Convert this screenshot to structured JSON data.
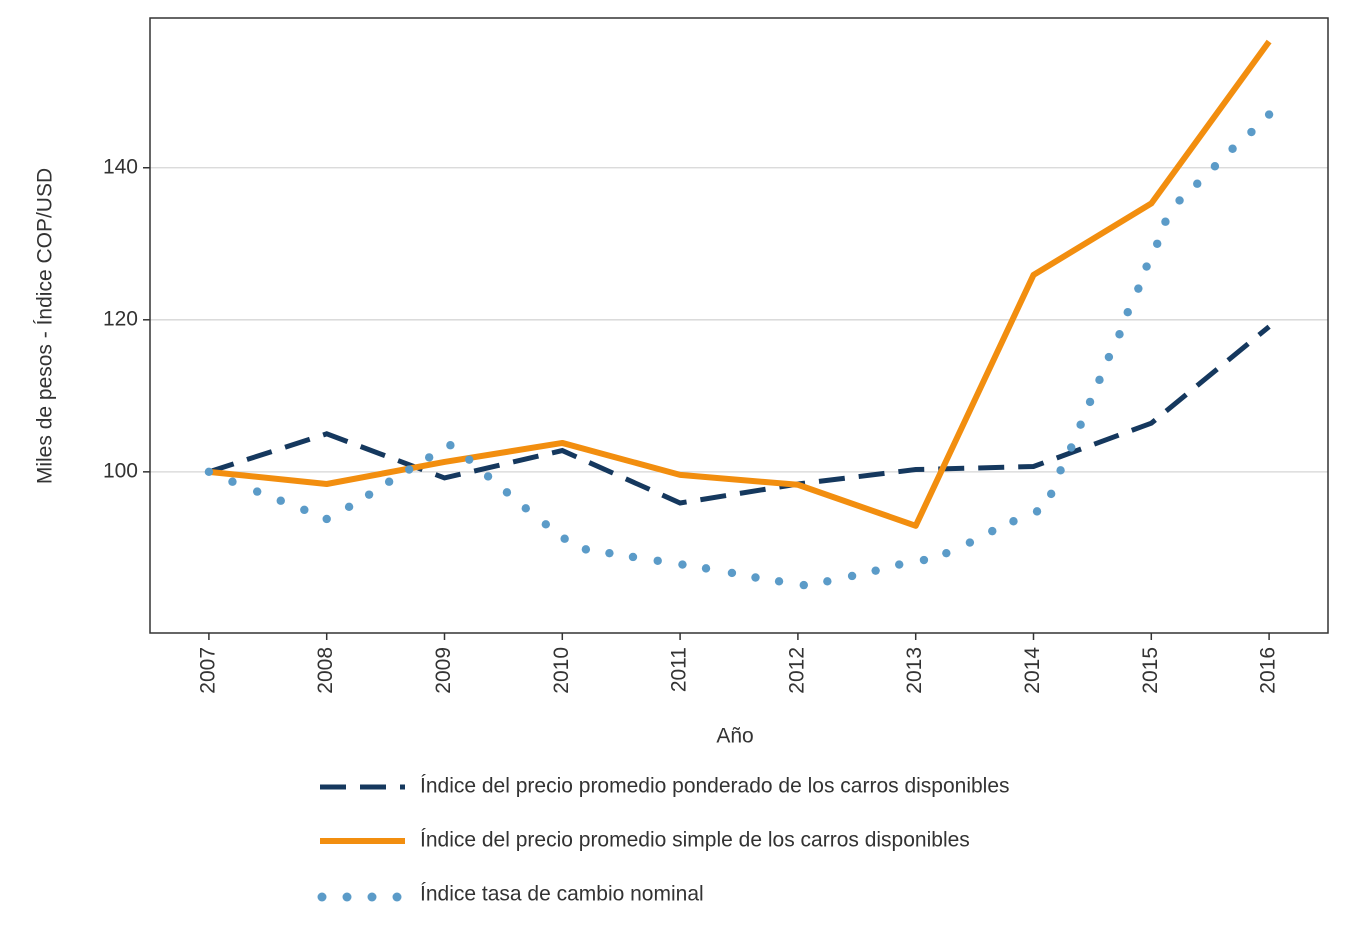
{
  "chart_data": {
    "type": "line",
    "x_label": "Año",
    "y_label": "Miles de pesos - Índice COP/USD",
    "xlim": [
      2006.5,
      2016.5
    ],
    "xticks": [
      2007,
      2008,
      2009,
      2010,
      2011,
      2012,
      2013,
      2014,
      2015,
      2016
    ],
    "ylim": [
      78.8,
      159.7
    ],
    "yticks": [
      100,
      120,
      140
    ],
    "grid": "y",
    "legend": "bottom",
    "series": [
      {
        "name": "Índice del precio promedio ponderado de los carros disponibles",
        "color": "#15385e",
        "style": "dashed",
        "x": [
          2007,
          2008,
          2009,
          2010,
          2011,
          2012,
          2013,
          2014,
          2015,
          2016
        ],
        "values": [
          100,
          105,
          99.2,
          102.8,
          95.9,
          98.4,
          100.3,
          100.7,
          106.4,
          119.1
        ]
      },
      {
        "name": "Índice del precio promedio simple de los carros disponibles",
        "color": "#f28e0f",
        "style": "solid",
        "x": [
          2007,
          2008,
          2009,
          2010,
          2011,
          2012,
          2013,
          2014,
          2015,
          2016
        ],
        "values": [
          100,
          98.4,
          101.3,
          103.8,
          99.6,
          98.3,
          92.9,
          125.9,
          135.3,
          156.6
        ]
      },
      {
        "name": "Índice tasa de cambio nominal",
        "color": "#5b9bc8",
        "style": "dotted",
        "x": [
          2007,
          2007.2,
          2007.41,
          2007.61,
          2007.81,
          2008,
          2008.19,
          2008.36,
          2008.53,
          2008.7,
          2008.87,
          2009.05,
          2009.21,
          2009.37,
          2009.53,
          2009.69,
          2009.86,
          2010.02,
          2010.2,
          2010.4,
          2010.6,
          2010.81,
          2011.02,
          2011.22,
          2011.44,
          2011.64,
          2011.84,
          2012.05,
          2012.25,
          2012.46,
          2012.66,
          2012.86,
          2013.07,
          2013.26,
          2013.46,
          2013.65,
          2013.83,
          2014.03,
          2014.15,
          2014.23,
          2014.32,
          2014.4,
          2014.48,
          2014.56,
          2014.64,
          2014.73,
          2014.8,
          2014.89,
          2014.96,
          2015.05,
          2015.12,
          2015.24,
          2015.39,
          2015.54,
          2015.69,
          2015.85,
          2016
        ],
        "values": [
          100,
          98.7,
          97.4,
          96.2,
          95,
          93.8,
          95.4,
          97,
          98.7,
          100.3,
          101.9,
          103.5,
          101.6,
          99.4,
          97.3,
          95.2,
          93.1,
          91.2,
          89.8,
          89.3,
          88.8,
          88.3,
          87.8,
          87.3,
          86.7,
          86.1,
          85.6,
          85.1,
          85.6,
          86.3,
          87,
          87.8,
          88.4,
          89.3,
          90.7,
          92.2,
          93.5,
          94.8,
          97.1,
          100.2,
          103.2,
          106.2,
          109.2,
          112.1,
          115.1,
          118.1,
          121,
          124.1,
          127,
          130,
          132.9,
          135.7,
          137.9,
          140.2,
          142.5,
          144.7,
          147
        ]
      }
    ]
  }
}
